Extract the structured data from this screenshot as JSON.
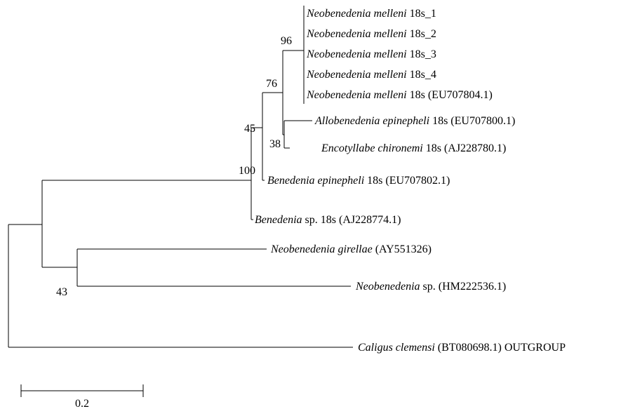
{
  "leaves": [
    {
      "italic": "Neobenedenia melleni",
      "text": "18s_1"
    },
    {
      "italic": "Neobenedenia melleni",
      "text": "18s_2"
    },
    {
      "italic": "Neobenedenia melleni",
      "text": "18s_3"
    },
    {
      "italic": "Neobenedenia melleni",
      "text": "18s_4"
    },
    {
      "italic": "Neobenedenia melleni",
      "text": "18s (EU707804.1)"
    },
    {
      "italic": "Allobenedenia epinepheli",
      "text": "18s (EU707800.1)"
    },
    {
      "italic": "Encotyllabe chironemi",
      "text": "18s (AJ228780.1)"
    },
    {
      "italic": "Benedenia epinepheli",
      "text": "18s (EU707802.1)"
    },
    {
      "italic": "Benedenia",
      "text": "sp. 18s (AJ228774.1)"
    },
    {
      "italic": "Neobenedenia girellae",
      "text": "(AY551326)"
    },
    {
      "italic": "Neobenedenia",
      "text": "sp. (HM222536.1)"
    },
    {
      "italic": "Caligus clemensi",
      "text": "(BT080698.1) OUTGROUP"
    }
  ],
  "bootstraps": [
    96,
    76,
    45,
    38,
    100,
    43
  ],
  "scale_bar": {
    "label": "0.2"
  }
}
